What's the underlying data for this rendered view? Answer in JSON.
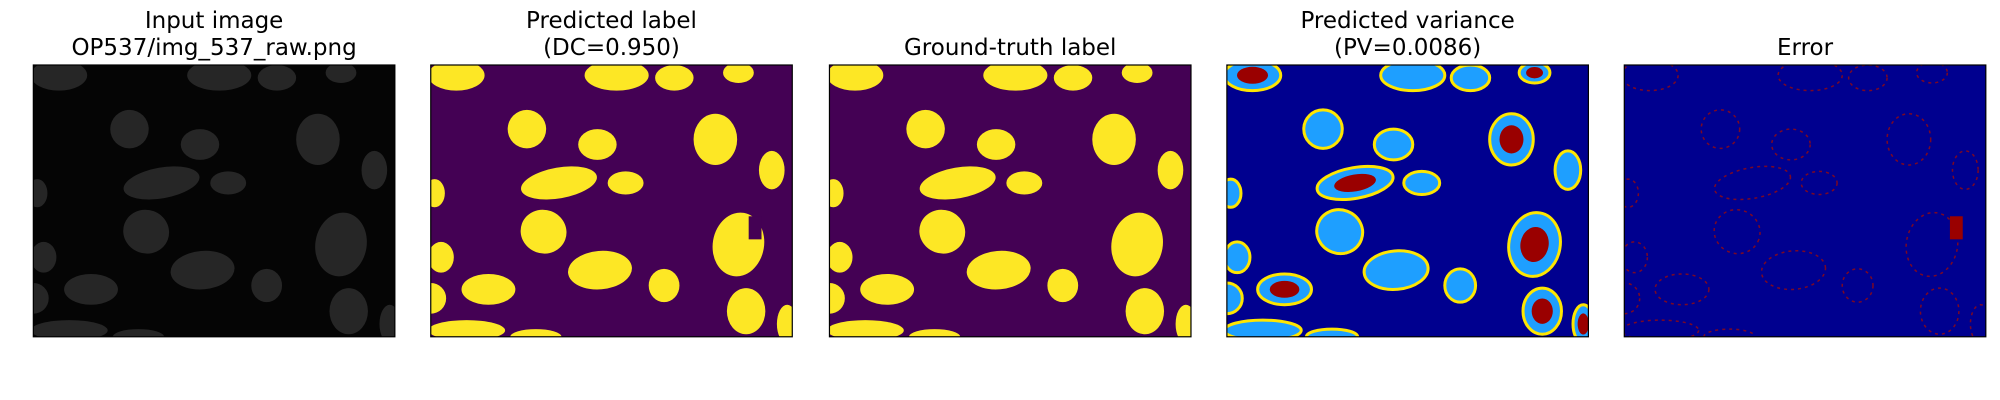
{
  "panels": [
    {
      "title": [
        "Input image",
        "OP537/img_537_raw.png"
      ]
    },
    {
      "title": [
        "Predicted label",
        "(DC=0.950)"
      ]
    },
    {
      "title": [
        "Ground-truth label"
      ]
    },
    {
      "title": [
        "Predicted variance",
        "(PV=0.0086)"
      ]
    },
    {
      "title": [
        "Error"
      ]
    }
  ]
}
